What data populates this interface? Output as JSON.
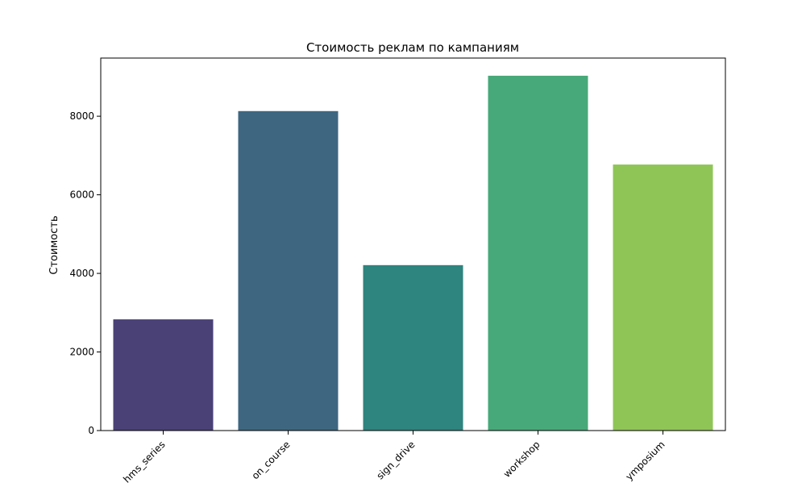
{
  "chart_data": {
    "type": "bar",
    "title": "Стоимость реклам по кампаниям",
    "xlabel": "",
    "ylabel": "Стоимость",
    "categories": [
      "hms_series",
      "on_course",
      "sign_drive",
      "workshop",
      "ymposium"
    ],
    "values": [
      2830,
      8130,
      4210,
      9030,
      6770
    ],
    "ylim": [
      0,
      9480
    ],
    "yticks": [
      0,
      2000,
      4000,
      6000,
      8000
    ],
    "grid": false,
    "legend": "none",
    "colors": [
      "#4a4177",
      "#3e6681",
      "#2e847e",
      "#47a979",
      "#8fc556"
    ]
  }
}
